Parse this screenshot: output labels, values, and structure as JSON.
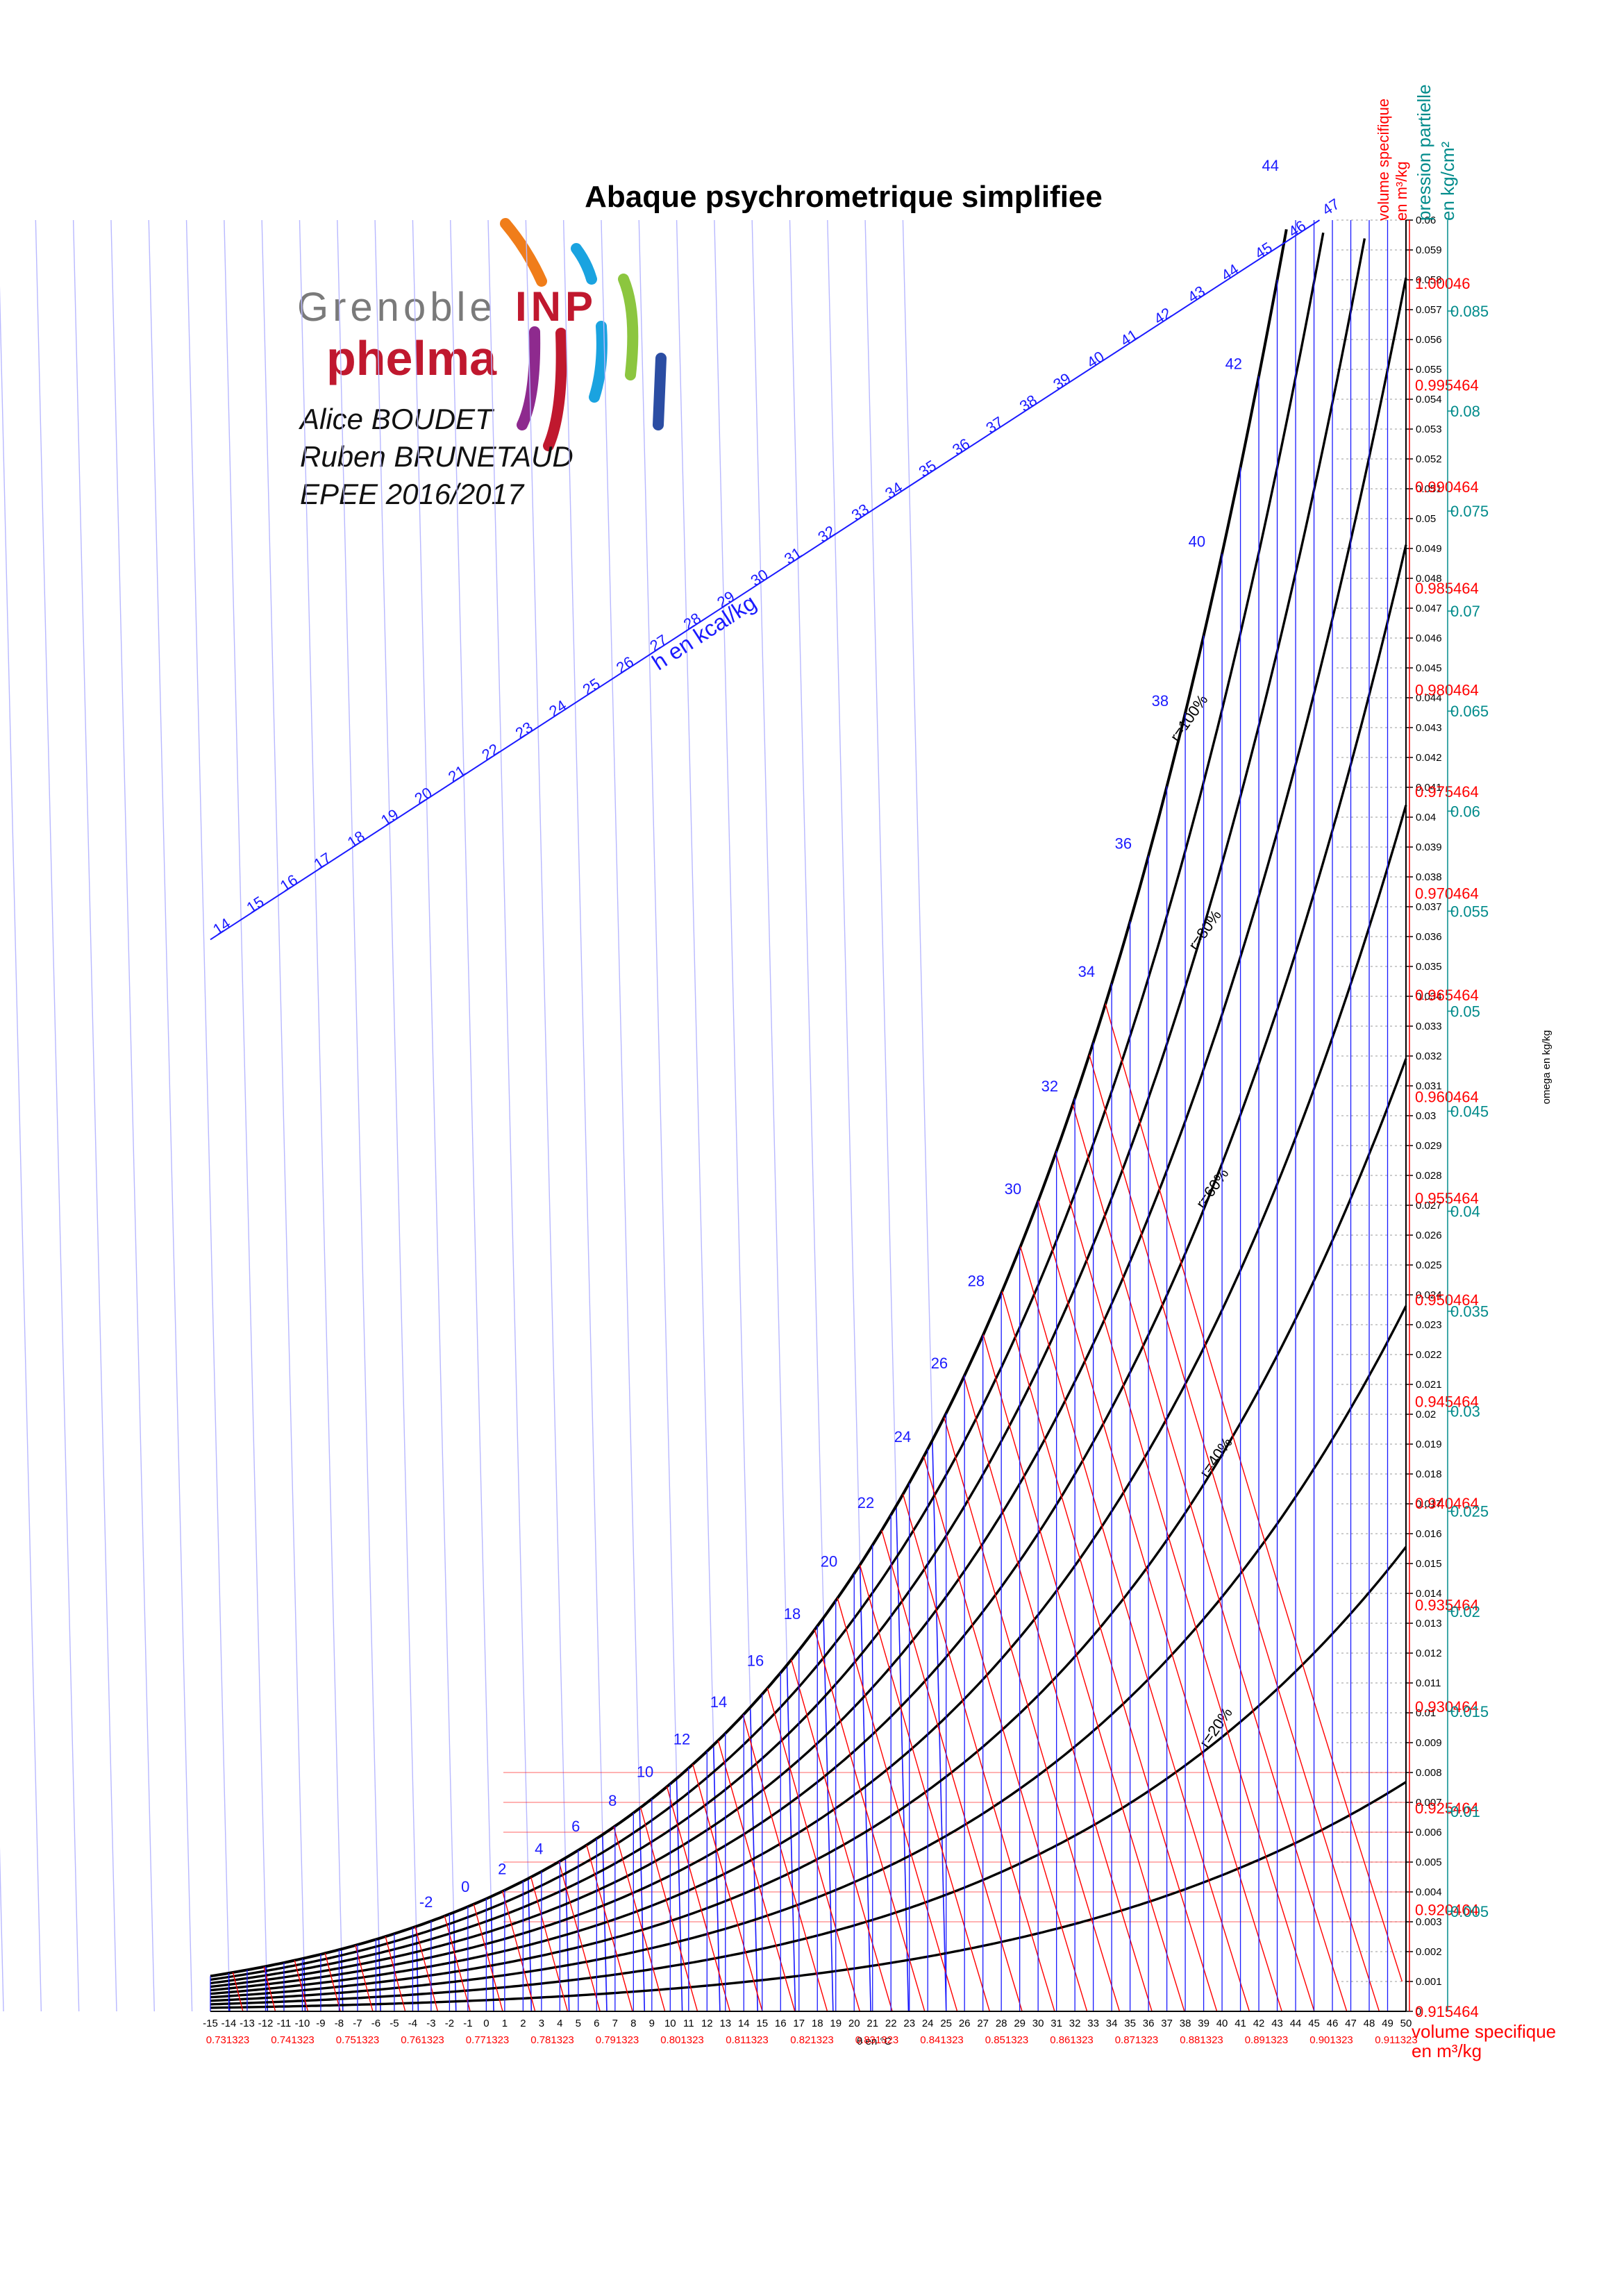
{
  "title": "Abaque psychrometrique simplifiee",
  "logo": {
    "grenoble": "Grenoble",
    "inp": "INP",
    "phelma": "phelma"
  },
  "authors": [
    "Alice  BOUDET",
    "Ruben BRUNETAUD",
    "EPEE 2016/2017"
  ],
  "colors": {
    "enthalpy": "#1a1aff",
    "volume": "#ff0000",
    "pressure": "#008b8b",
    "saturation": "#000000",
    "humidity_lines": "#000000"
  },
  "chart_data": {
    "type": "line",
    "title": "Abaque psychrometrique simplifiee",
    "xlabel": "θ en °C",
    "ylabel": "omega en kg/kg",
    "xlim": [
      -15,
      50
    ],
    "ylim": [
      0,
      0.06
    ],
    "x_ticks": [
      -15,
      -14,
      -13,
      -12,
      -11,
      -10,
      -9,
      -8,
      -7,
      -6,
      -5,
      -4,
      -3,
      -2,
      -1,
      0,
      1,
      2,
      3,
      4,
      5,
      6,
      7,
      8,
      9,
      10,
      11,
      12,
      13,
      14,
      15,
      16,
      17,
      18,
      19,
      20,
      21,
      22,
      23,
      24,
      25,
      26,
      27,
      28,
      29,
      30,
      31,
      32,
      33,
      34,
      35,
      36,
      37,
      38,
      39,
      40,
      41,
      42,
      43,
      44,
      45,
      46,
      47,
      48,
      49,
      50
    ],
    "y_ticks": [
      0,
      0.001,
      0.002,
      0.003,
      0.004,
      0.005,
      0.006,
      0.007,
      0.008,
      0.009,
      0.01,
      0.011,
      0.012,
      0.013,
      0.014,
      0.015,
      0.016,
      0.017,
      0.018,
      0.019,
      0.02,
      0.021,
      0.022,
      0.023,
      0.024,
      0.025,
      0.026,
      0.027,
      0.028,
      0.029,
      0.03,
      0.031,
      0.032,
      0.033,
      0.034,
      0.035,
      0.036,
      0.037,
      0.038,
      0.039,
      0.04,
      0.041,
      0.042,
      0.043,
      0.044,
      0.045,
      0.046,
      0.047,
      0.048,
      0.049,
      0.05,
      0.051,
      0.052,
      0.053,
      0.054,
      0.055,
      0.056,
      0.057,
      0.058,
      0.059,
      0.06
    ],
    "relative_humidity_curves": [
      {
        "phi": 100,
        "label": "r=100%"
      },
      {
        "phi": 90,
        "label": ""
      },
      {
        "phi": 80,
        "label": "r=80%"
      },
      {
        "phi": 70,
        "label": ""
      },
      {
        "phi": 60,
        "label": "r=60%"
      },
      {
        "phi": 50,
        "label": ""
      },
      {
        "phi": 40,
        "label": "r=40%"
      },
      {
        "phi": 30,
        "label": ""
      },
      {
        "phi": 20,
        "label": "r=20%"
      },
      {
        "phi": 10,
        "label": ""
      }
    ],
    "wet_bulb_labels": [
      -2,
      0,
      2,
      4,
      6,
      8,
      10,
      12,
      14,
      16,
      18,
      20,
      22,
      24,
      26,
      28,
      30,
      32,
      34,
      36,
      38,
      40,
      42,
      44
    ],
    "enthalpy_axis": {
      "label": "h en kcal/kg",
      "ticks": [
        14,
        15,
        16,
        17,
        18,
        19,
        20,
        21,
        22,
        23,
        24,
        25,
        26,
        27,
        28,
        29,
        30,
        31,
        32,
        33,
        34,
        35,
        36,
        37,
        38,
        39,
        40,
        41,
        42,
        43,
        44,
        45,
        46,
        47
      ]
    },
    "volume_bottom_axis": {
      "label": "volume specifique en m³/kg",
      "ticks": [
        "0.731323",
        "0.741323",
        "0.751323",
        "0.761323",
        "0.771323",
        "0.781323",
        "0.791323",
        "0.801323",
        "0.811323",
        "0.821323",
        "0.831323",
        "0.841323",
        "0.851323",
        "0.861323",
        "0.871323",
        "0.881323",
        "0.891323",
        "0.901323",
        "0.911323"
      ]
    },
    "volume_right_axis": {
      "label": "volume specifique en m³/kg",
      "ticks": [
        "0.915464",
        "0.920464",
        "0.925464",
        "0.930464",
        "0.935464",
        "0.940464",
        "0.945464",
        "0.950464",
        "0.955464",
        "0.960464",
        "0.965464",
        "0.970464",
        "0.975464",
        "0.980464",
        "0.985464",
        "0.990464",
        "0.995464",
        "1.00046"
      ]
    },
    "pressure_axis": {
      "label": "pression partielle en kg/cm²",
      "ticks": [
        "0.005",
        "0.01",
        "0.015",
        "0.02",
        "0.025",
        "0.03",
        "0.035",
        "0.04",
        "0.045",
        "0.05",
        "0.055",
        "0.06",
        "0.065",
        "0.07",
        "0.075",
        "0.08",
        "0.085"
      ]
    }
  }
}
